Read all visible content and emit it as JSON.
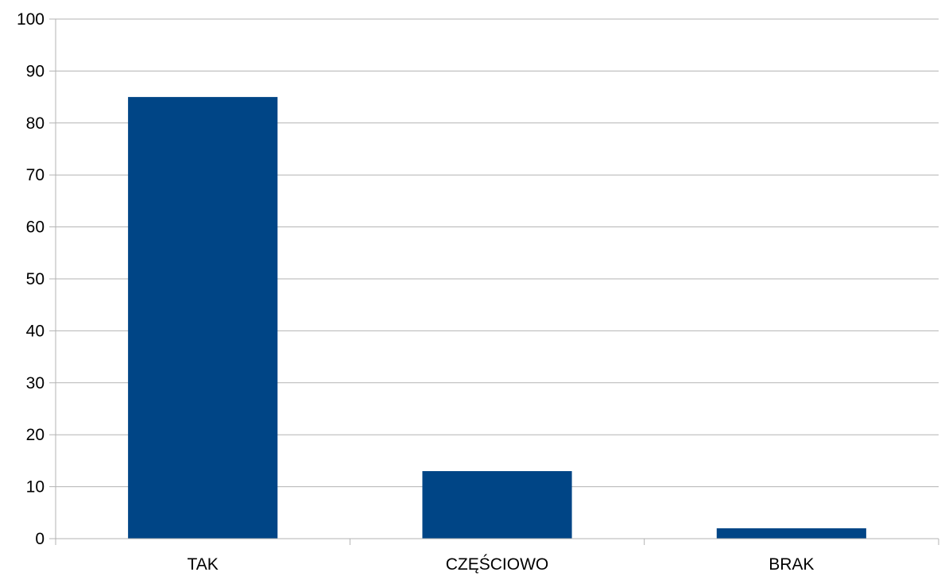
{
  "chart_data": {
    "type": "bar",
    "title": "",
    "xlabel": "",
    "ylabel": "",
    "categories": [
      "TAK",
      "CZĘŚCIOWO",
      "BRAK"
    ],
    "values": [
      85,
      13,
      2
    ],
    "ylim": [
      0,
      100
    ],
    "yticks": [
      0,
      10,
      20,
      30,
      40,
      50,
      60,
      70,
      80,
      90,
      100
    ],
    "ytick_labels": [
      "0",
      "10",
      "20",
      "30",
      "40",
      "50",
      "60",
      "70",
      "80",
      "90",
      "100"
    ],
    "grid": true,
    "legend": "none",
    "colors": {
      "bar": "#004586",
      "grid": "#b3b3b3",
      "axis": "#b3b3b3"
    }
  }
}
